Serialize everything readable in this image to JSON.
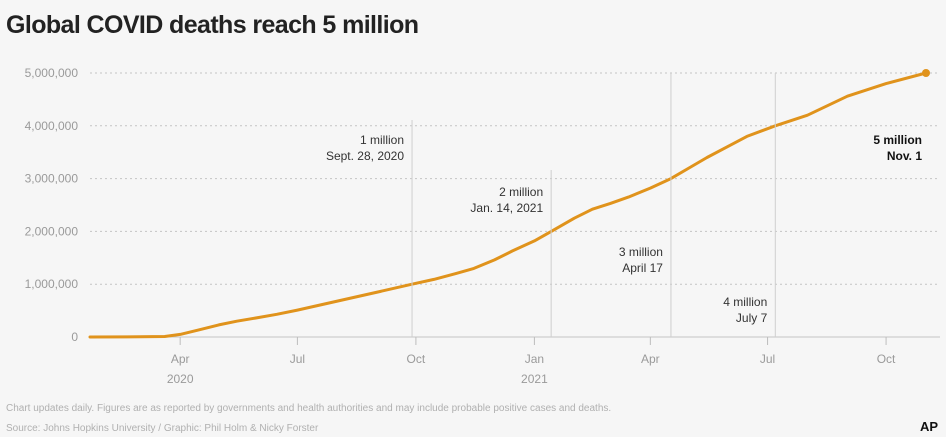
{
  "chart_data": {
    "type": "line",
    "title": "Global COVID deaths reach 5 million",
    "xlabel": "",
    "ylabel": "",
    "x_range": [
      "2020-01-22",
      "2021-11-01"
    ],
    "ylim": [
      0,
      5000000
    ],
    "yticks": [
      {
        "value": 0,
        "label": "0"
      },
      {
        "value": 1000000,
        "label": "1,000,000"
      },
      {
        "value": 2000000,
        "label": "2,000,000"
      },
      {
        "value": 3000000,
        "label": "3,000,000"
      },
      {
        "value": 4000000,
        "label": "4,000,000"
      },
      {
        "value": 5000000,
        "label": "5,000,000"
      }
    ],
    "xticks": [
      {
        "date": "2020-04-01",
        "label": "Apr",
        "sublabel": "2020"
      },
      {
        "date": "2020-07-01",
        "label": "Jul",
        "sublabel": ""
      },
      {
        "date": "2020-10-01",
        "label": "Oct",
        "sublabel": ""
      },
      {
        "date": "2021-01-01",
        "label": "Jan",
        "sublabel": "2021"
      },
      {
        "date": "2021-04-01",
        "label": "Apr",
        "sublabel": ""
      },
      {
        "date": "2021-07-01",
        "label": "Jul",
        "sublabel": ""
      },
      {
        "date": "2021-10-01",
        "label": "Oct",
        "sublabel": ""
      }
    ],
    "grid": true,
    "series_color": "#e0931c",
    "series": [
      {
        "name": "",
        "points": [
          {
            "x": "2020-01-22",
            "y": 0
          },
          {
            "x": "2020-03-01",
            "y": 3000
          },
          {
            "x": "2020-03-20",
            "y": 10000
          },
          {
            "x": "2020-04-01",
            "y": 50000
          },
          {
            "x": "2020-04-15",
            "y": 130000
          },
          {
            "x": "2020-05-01",
            "y": 230000
          },
          {
            "x": "2020-05-15",
            "y": 300000
          },
          {
            "x": "2020-06-01",
            "y": 370000
          },
          {
            "x": "2020-06-15",
            "y": 430000
          },
          {
            "x": "2020-07-01",
            "y": 510000
          },
          {
            "x": "2020-08-01",
            "y": 680000
          },
          {
            "x": "2020-09-01",
            "y": 850000
          },
          {
            "x": "2020-09-28",
            "y": 1000000
          },
          {
            "x": "2020-10-15",
            "y": 1090000
          },
          {
            "x": "2020-11-01",
            "y": 1200000
          },
          {
            "x": "2020-11-15",
            "y": 1300000
          },
          {
            "x": "2020-12-01",
            "y": 1460000
          },
          {
            "x": "2020-12-15",
            "y": 1630000
          },
          {
            "x": "2021-01-01",
            "y": 1820000
          },
          {
            "x": "2021-01-14",
            "y": 2000000
          },
          {
            "x": "2021-02-01",
            "y": 2250000
          },
          {
            "x": "2021-02-15",
            "y": 2420000
          },
          {
            "x": "2021-03-01",
            "y": 2530000
          },
          {
            "x": "2021-03-15",
            "y": 2650000
          },
          {
            "x": "2021-04-01",
            "y": 2820000
          },
          {
            "x": "2021-04-17",
            "y": 3000000
          },
          {
            "x": "2021-05-01",
            "y": 3200000
          },
          {
            "x": "2021-05-15",
            "y": 3400000
          },
          {
            "x": "2021-06-01",
            "y": 3620000
          },
          {
            "x": "2021-06-15",
            "y": 3800000
          },
          {
            "x": "2021-07-07",
            "y": 4000000
          },
          {
            "x": "2021-08-01",
            "y": 4200000
          },
          {
            "x": "2021-09-01",
            "y": 4560000
          },
          {
            "x": "2021-10-01",
            "y": 4800000
          },
          {
            "x": "2021-11-01",
            "y": 5000000
          }
        ]
      }
    ],
    "annotations": [
      {
        "date": "2020-09-28",
        "value": 1000000,
        "line1": "1 million",
        "line2": "Sept. 28, 2020",
        "bold": false
      },
      {
        "date": "2021-01-14",
        "value": 2000000,
        "line1": "2 million",
        "line2": "Jan. 14, 2021",
        "bold": false
      },
      {
        "date": "2021-04-17",
        "value": 3000000,
        "line1": "3 million",
        "line2": "April 17",
        "bold": false
      },
      {
        "date": "2021-07-07",
        "value": 4000000,
        "line1": "4 million",
        "line2": "July 7",
        "bold": false
      },
      {
        "date": "2021-11-01",
        "value": 5000000,
        "line1": "5 million",
        "line2": "Nov. 1",
        "bold": true
      }
    ],
    "note": "Chart updates daily. Figures are as reported by governments and health authorities and may include probable positive cases and deaths.",
    "source": "Source: Johns Hopkins University / Graphic: Phil Holm & Nicky Forster",
    "logo": "AP"
  }
}
